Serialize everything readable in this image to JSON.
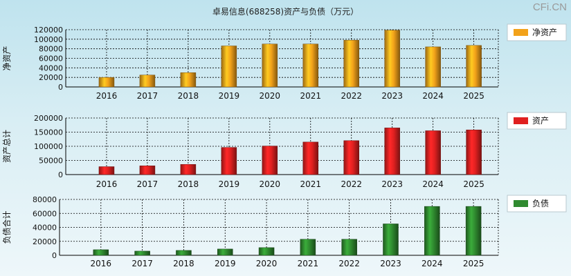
{
  "title": "卓易信息(688258)资产与负债（万元）",
  "watermark": "CFi.CN",
  "colors": {
    "net_assets": "#f2a21a",
    "assets": "#e02020",
    "liabilities": "#2f8a2f",
    "grid": "#000000"
  },
  "chart_data": [
    {
      "type": "bar",
      "title": "",
      "xlabel": "",
      "ylabel": "净资产",
      "legend": "净资产",
      "legend_position": "right",
      "categories": [
        "2016",
        "2017",
        "2018",
        "2019",
        "2020",
        "2021",
        "2022",
        "2023",
        "2024",
        "2025"
      ],
      "values": [
        20000,
        25000,
        30000,
        86000,
        90000,
        90000,
        98000,
        119000,
        84000,
        87000
      ],
      "ylim": [
        0,
        120000
      ],
      "yticks": [
        0,
        20000,
        40000,
        60000,
        80000,
        100000,
        120000
      ],
      "ytick_labels": [
        "0",
        "20000",
        "40000",
        "60000",
        "80000",
        "100000",
        "120000"
      ],
      "grid": true
    },
    {
      "type": "bar",
      "title": "",
      "xlabel": "",
      "ylabel": "资产总计",
      "legend": "资产",
      "legend_position": "right",
      "categories": [
        "2016",
        "2017",
        "2018",
        "2019",
        "2020",
        "2021",
        "2022",
        "2023",
        "2024",
        "2025"
      ],
      "values": [
        28000,
        31000,
        36000,
        96000,
        101000,
        115000,
        120000,
        165000,
        155000,
        158000
      ],
      "ylim": [
        0,
        200000
      ],
      "yticks": [
        0,
        50000,
        100000,
        150000,
        200000
      ],
      "ytick_labels": [
        "0",
        "50000",
        "100000",
        "150000",
        "200000"
      ],
      "grid": true
    },
    {
      "type": "bar",
      "title": "",
      "xlabel": "",
      "ylabel": "负债合计",
      "legend": "负债",
      "legend_position": "right",
      "categories": [
        "2016",
        "2017",
        "2018",
        "2019",
        "2020",
        "2021",
        "2022",
        "2023",
        "2024",
        "2025"
      ],
      "values": [
        8000,
        6000,
        7000,
        9000,
        11000,
        23000,
        23000,
        45000,
        70000,
        70000
      ],
      "ylim": [
        0,
        80000
      ],
      "yticks": [
        0,
        20000,
        40000,
        60000,
        80000
      ],
      "ytick_labels": [
        "0",
        "20000",
        "40000",
        "60000",
        "80000"
      ],
      "grid": true
    }
  ]
}
